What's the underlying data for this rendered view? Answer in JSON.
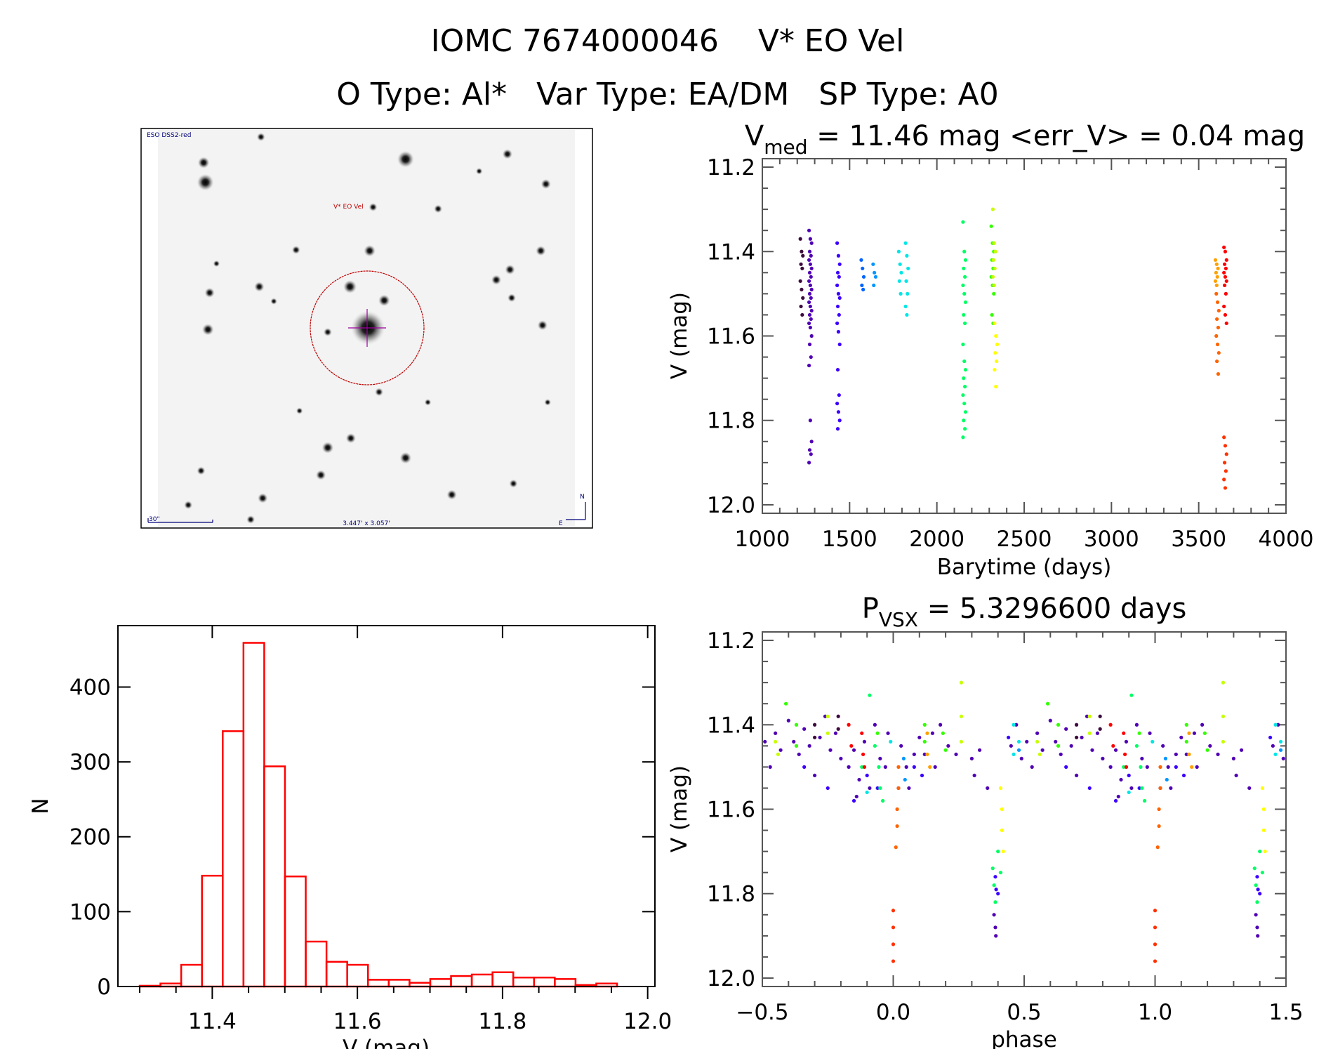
{
  "header": {
    "object_id": "IOMC 7674000046",
    "star_name": "V* EO Vel",
    "object_type_label": "O Type:",
    "object_type": "Al*",
    "var_type_label": "Var Type:",
    "var_type": "EA/DM",
    "sp_type_label": "SP Type:",
    "sp_type": "A0"
  },
  "finder_image": {
    "survey": "ESO DSS2-red",
    "target_label": "V* EO Vel",
    "scale_bar": "30\"",
    "field_size": "3.447' x 3.057'",
    "north": "N",
    "east": "E",
    "circle_color": "#c00000"
  },
  "chart_data": [
    {
      "id": "light_curve_time",
      "type": "scatter",
      "title_parts": {
        "v": "V",
        "sub": "med",
        "rest": " = 11.46 mag <err_V> = 0.04 mag"
      },
      "xlabel": "Barytime (days)",
      "ylabel": "V (mag)",
      "xlim": [
        1000,
        4000
      ],
      "ylim": [
        12.02,
        11.18
      ],
      "y_reversed": true,
      "xticks": [
        1000,
        1500,
        2000,
        2500,
        3000,
        3500,
        4000
      ],
      "xtick_labels": [
        "1000",
        "1500",
        "2000",
        "2500",
        "3000",
        "3500",
        "4000"
      ],
      "yticks": [
        11.2,
        11.4,
        11.6,
        11.8,
        12.0
      ],
      "ytick_labels": [
        "11.2",
        "11.4",
        "11.6",
        "11.8",
        "12.0"
      ],
      "grid": false,
      "series": [
        {
          "color": "#3c0a3c",
          "t": 1225,
          "v": [
            11.37,
            11.4,
            11.41,
            11.43,
            11.44,
            11.47,
            11.49,
            11.51,
            11.53,
            11.55
          ]
        },
        {
          "color": "#5000b4",
          "t": 1275,
          "v": [
            11.35,
            11.37,
            11.38,
            11.4,
            11.41,
            11.42,
            11.43,
            11.44,
            11.45,
            11.46,
            11.47,
            11.48,
            11.49,
            11.5,
            11.51,
            11.52,
            11.53,
            11.54,
            11.55,
            11.56,
            11.57,
            11.58,
            11.6,
            11.62,
            11.65,
            11.67,
            11.8,
            11.85,
            11.87,
            11.88,
            11.9
          ]
        },
        {
          "color": "#3c00ff",
          "t": 1436,
          "v": [
            11.38,
            11.41,
            11.43,
            11.45,
            11.46,
            11.48,
            11.5,
            11.51,
            11.53,
            11.55,
            11.57,
            11.59,
            11.62,
            11.68,
            11.74,
            11.76,
            11.78,
            11.8,
            11.82
          ]
        },
        {
          "color": "#0064ff",
          "t": 1574,
          "v": [
            11.42,
            11.44,
            11.46,
            11.48,
            11.49
          ]
        },
        {
          "color": "#0096ff",
          "t": 1642,
          "v": [
            11.43,
            11.45,
            11.46,
            11.48
          ]
        },
        {
          "color": "#00e6e6",
          "t": 1789,
          "v": [
            11.4,
            11.43,
            11.45,
            11.47,
            11.5
          ]
        },
        {
          "color": "#00e6e6",
          "t": 1828,
          "v": [
            11.38,
            11.41,
            11.44,
            11.47,
            11.5,
            11.53,
            11.55
          ]
        },
        {
          "color": "#00ff64",
          "t": 2157,
          "v": [
            11.33,
            11.4,
            11.42,
            11.44,
            11.46,
            11.48,
            11.5,
            11.52,
            11.55,
            11.57,
            11.62,
            11.66,
            11.68,
            11.7,
            11.72,
            11.74,
            11.76,
            11.78,
            11.8,
            11.82,
            11.84
          ]
        },
        {
          "color": "#32ff00",
          "t": 2319,
          "v": [
            11.34,
            11.38,
            11.4,
            11.42,
            11.44,
            11.46,
            11.48,
            11.5,
            11.55,
            11.57
          ]
        },
        {
          "color": "#c8ff00",
          "t": 2328,
          "v": [
            11.3,
            11.38,
            11.4,
            11.42,
            11.44,
            11.46,
            11.48
          ]
        },
        {
          "color": "#ffff00",
          "t": 2338,
          "v": [
            11.57,
            11.6,
            11.62,
            11.64,
            11.66,
            11.68,
            11.72
          ]
        },
        {
          "color": "#ffa000",
          "t": 3603,
          "v": [
            11.42,
            11.43,
            11.44,
            11.45,
            11.46,
            11.47,
            11.48
          ]
        },
        {
          "color": "#ff6400",
          "t": 3608,
          "v": [
            11.5,
            11.52,
            11.54,
            11.56,
            11.58,
            11.6,
            11.62,
            11.64,
            11.66,
            11.69
          ]
        },
        {
          "color": "#ff0000",
          "t": 3652,
          "v": [
            11.39,
            11.4,
            11.42,
            11.43,
            11.44,
            11.45,
            11.46,
            11.47,
            11.48,
            11.5,
            11.53,
            11.55,
            11.57
          ]
        },
        {
          "color": "#ff3200",
          "t": 3652,
          "v": [
            11.84,
            11.86,
            11.88,
            11.9,
            11.92,
            11.94,
            11.96
          ]
        }
      ]
    },
    {
      "id": "light_curve_phase",
      "type": "scatter",
      "title_parts": {
        "p": "P",
        "sub": "VSX",
        "rest": " = 5.3296600 days"
      },
      "xlabel": "phase",
      "ylabel": "V (mag)",
      "xlim": [
        -0.5,
        1.5
      ],
      "ylim": [
        12.02,
        11.18
      ],
      "y_reversed": true,
      "xticks": [
        -0.5,
        0.0,
        0.5,
        1.0,
        1.5
      ],
      "xtick_labels": [
        "−0.5",
        "0.0",
        "0.5",
        "1.0",
        "1.5"
      ],
      "yticks": [
        11.2,
        11.4,
        11.6,
        11.8,
        12.0
      ],
      "ytick_labels": [
        "11.2",
        "11.4",
        "11.6",
        "11.8",
        "12.0"
      ],
      "grid": false,
      "phase_repeated": true,
      "series": [
        {
          "color": "#5000b4",
          "points": [
            [
              0.03,
              11.45
            ],
            [
              0.05,
              11.5
            ],
            [
              0.08,
              11.47
            ],
            [
              0.1,
              11.43
            ],
            [
              0.12,
              11.47
            ],
            [
              0.15,
              11.42
            ],
            [
              0.18,
              11.4
            ],
            [
              0.21,
              11.45
            ],
            [
              0.3,
              11.48
            ],
            [
              0.31,
              11.52
            ],
            [
              0.33,
              11.46
            ],
            [
              0.36,
              11.55
            ],
            [
              0.385,
              11.85
            ],
            [
              0.39,
              11.88
            ],
            [
              0.392,
              11.9
            ],
            [
              0.45,
              11.45
            ],
            [
              0.47,
              11.4
            ],
            [
              0.49,
              11.48
            ],
            [
              0.51,
              11.44
            ],
            [
              0.53,
              11.5
            ],
            [
              0.55,
              11.42
            ],
            [
              0.57,
              11.46
            ],
            [
              0.6,
              11.39
            ],
            [
              0.62,
              11.44
            ],
            [
              0.64,
              11.47
            ],
            [
              0.66,
              11.41
            ],
            [
              0.68,
              11.45
            ],
            [
              0.72,
              11.43
            ],
            [
              0.74,
              11.38
            ],
            [
              0.76,
              11.46
            ],
            [
              0.78,
              11.42
            ],
            [
              0.8,
              11.48
            ],
            [
              0.83,
              11.5
            ],
            [
              0.85,
              11.46
            ],
            [
              0.87,
              11.53
            ],
            [
              0.89,
              11.44
            ],
            [
              0.91,
              11.55
            ],
            [
              0.93,
              11.4
            ],
            [
              0.95,
              11.48
            ],
            [
              0.97,
              11.5
            ],
            [
              0.98,
              11.42
            ],
            [
              0.06,
              11.55
            ],
            [
              0.16,
              11.5
            ],
            [
              0.24,
              11.47
            ],
            [
              0.7,
              11.52
            ],
            [
              0.86,
              11.57
            ]
          ]
        },
        {
          "color": "#3c0a3c",
          "points": [
            [
              0.7,
              11.4
            ],
            [
              0.7,
              11.43
            ],
            [
              0.79,
              11.38
            ],
            [
              0.79,
              11.41
            ]
          ]
        },
        {
          "color": "#3c00ff",
          "points": [
            [
              0.02,
              11.55
            ],
            [
              0.08,
              11.5
            ],
            [
              0.11,
              11.52
            ],
            [
              0.39,
              11.76
            ],
            [
              0.393,
              11.79
            ],
            [
              0.4,
              11.8
            ],
            [
              0.44,
              11.43
            ],
            [
              0.66,
              11.5
            ],
            [
              0.75,
              11.55
            ],
            [
              0.85,
              11.58
            ],
            [
              0.9,
              11.52
            ],
            [
              0.94,
              11.55
            ]
          ]
        },
        {
          "color": "#0096ff",
          "points": [
            [
              0.04,
              11.48
            ],
            [
              0.045,
              11.53
            ],
            [
              0.48,
              11.46
            ]
          ]
        },
        {
          "color": "#00e6e6",
          "points": [
            [
              0.46,
              11.4
            ],
            [
              0.46,
              11.47
            ],
            [
              0.48,
              11.44
            ],
            [
              0.99,
              11.44
            ],
            [
              0.9,
              11.56
            ]
          ]
        },
        {
          "color": "#00ff64",
          "points": [
            [
              0.38,
              11.74
            ],
            [
              0.385,
              11.78
            ],
            [
              0.39,
              11.82
            ],
            [
              0.4,
              11.7
            ],
            [
              0.41,
              11.75
            ],
            [
              0.93,
              11.45
            ],
            [
              0.945,
              11.5
            ],
            [
              0.95,
              11.55
            ],
            [
              0.96,
              11.58
            ],
            [
              0.88,
              11.5
            ],
            [
              0.91,
              11.33
            ]
          ]
        },
        {
          "color": "#32ff00",
          "points": [
            [
              0.63,
              11.4
            ],
            [
              0.63,
              11.45
            ],
            [
              0.59,
              11.35
            ],
            [
              0.12,
              11.4
            ],
            [
              0.12,
              11.44
            ],
            [
              0.19,
              11.42
            ],
            [
              0.2,
              11.46
            ],
            [
              0.94,
              11.42
            ]
          ]
        },
        {
          "color": "#c8ff00",
          "points": [
            [
              0.75,
              11.38
            ],
            [
              0.75,
              11.42
            ],
            [
              0.26,
              11.3
            ],
            [
              0.26,
              11.38
            ],
            [
              0.26,
              11.44
            ],
            [
              0.55,
              11.44
            ],
            [
              0.56,
              11.47
            ]
          ]
        },
        {
          "color": "#ffff00",
          "points": [
            [
              0.41,
              11.55
            ],
            [
              0.415,
              11.6
            ],
            [
              0.415,
              11.65
            ],
            [
              0.42,
              11.7
            ]
          ]
        },
        {
          "color": "#ffa000",
          "points": [
            [
              0.13,
              11.42
            ],
            [
              0.13,
              11.47
            ],
            [
              0.14,
              11.5
            ]
          ]
        },
        {
          "color": "#ff6400",
          "points": [
            [
              0.02,
              11.5
            ],
            [
              0.02,
              11.55
            ],
            [
              0.015,
              11.6
            ],
            [
              0.015,
              11.64
            ],
            [
              0.01,
              11.69
            ]
          ]
        },
        {
          "color": "#ff0000",
          "points": [
            [
              0.83,
              11.4
            ],
            [
              0.84,
              11.45
            ],
            [
              0.88,
              11.42
            ],
            [
              0.885,
              11.47
            ],
            [
              0.89,
              11.5
            ]
          ]
        },
        {
          "color": "#ff3200",
          "points": [
            [
              0.0,
              11.84
            ],
            [
              0.0,
              11.88
            ],
            [
              0.0,
              11.92
            ],
            [
              0.0,
              11.96
            ]
          ]
        }
      ]
    },
    {
      "id": "histogram",
      "type": "bar",
      "xlabel": "V (mag)",
      "ylabel": "N",
      "xlim": [
        11.27,
        12.01
      ],
      "ylim": [
        0,
        482
      ],
      "xticks": [
        11.4,
        11.6,
        11.8,
        12.0
      ],
      "xtick_labels": [
        "11.4",
        "11.6",
        "11.8",
        "12.0"
      ],
      "yticks": [
        0,
        100,
        200,
        300,
        400
      ],
      "ytick_labels": [
        "0",
        "100",
        "200",
        "300",
        "400"
      ],
      "bar_color": "#ff0000",
      "bin_start": 11.3,
      "bin_width": 0.0286,
      "values": [
        1,
        4,
        29,
        148,
        341,
        459,
        294,
        147,
        60,
        33,
        29,
        9,
        9,
        5,
        10,
        14,
        16,
        19,
        12,
        12,
        10,
        2,
        4
      ]
    }
  ]
}
